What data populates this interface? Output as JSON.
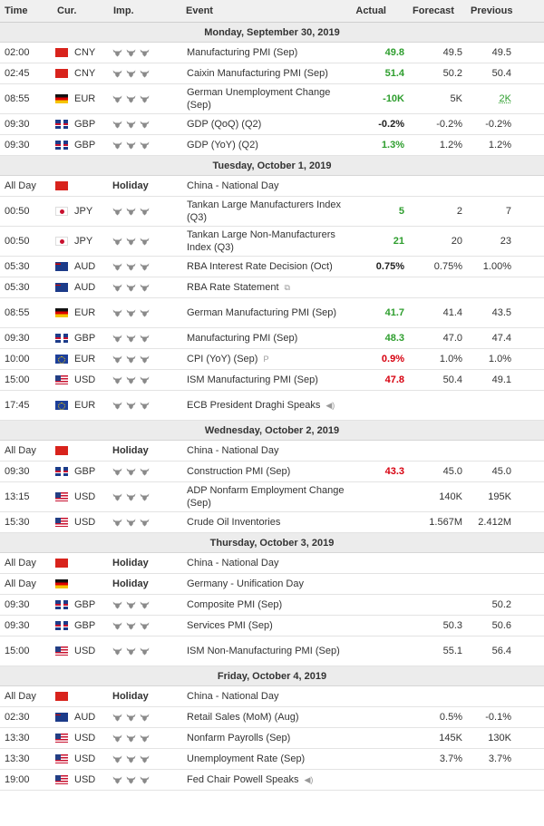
{
  "headers": {
    "time": "Time",
    "currency": "Cur.",
    "importance": "Imp.",
    "event": "Event",
    "actual": "Actual",
    "forecast": "Forecast",
    "previous": "Previous"
  },
  "days": [
    {
      "label": "Monday, September 30, 2019",
      "rows": [
        {
          "time": "02:00",
          "flag": "cn",
          "cur": "CNY",
          "event": "Manufacturing PMI (Sep)",
          "actual": "49.8",
          "actual_color": "green",
          "forecast": "49.5",
          "previous": "49.5",
          "h": 1
        },
        {
          "time": "02:45",
          "flag": "cn",
          "cur": "CNY",
          "event": "Caixin Manufacturing PMI (Sep)",
          "actual": "51.4",
          "actual_color": "green",
          "forecast": "50.2",
          "previous": "50.4",
          "h": 1
        },
        {
          "time": "08:55",
          "flag": "de",
          "cur": "EUR",
          "event": "German Unemployment Change (Sep)",
          "actual": "-10K",
          "actual_color": "green",
          "forecast": "5K",
          "previous": "2K",
          "previous_color": "green",
          "h": 2
        },
        {
          "time": "09:30",
          "flag": "gb",
          "cur": "GBP",
          "event": "GDP (QoQ) (Q2)",
          "actual": "-0.2%",
          "actual_color": "dark",
          "forecast": "-0.2%",
          "previous": "-0.2%",
          "h": 1
        },
        {
          "time": "09:30",
          "flag": "gb",
          "cur": "GBP",
          "event": "GDP (YoY) (Q2)",
          "actual": "1.3%",
          "actual_color": "green",
          "forecast": "1.2%",
          "previous": "1.2%",
          "h": 1
        }
      ]
    },
    {
      "label": "Tuesday, October 1, 2019",
      "rows": [
        {
          "time": "All Day",
          "flag": "cn",
          "cur": "",
          "holiday": "Holiday",
          "event": "China - National Day",
          "actual": "",
          "forecast": "",
          "previous": "",
          "h": 1
        },
        {
          "time": "00:50",
          "flag": "jp",
          "cur": "JPY",
          "event": "Tankan Large Manufacturers Index (Q3)",
          "actual": "5",
          "actual_color": "green",
          "forecast": "2",
          "previous": "7",
          "h": 2
        },
        {
          "time": "00:50",
          "flag": "jp",
          "cur": "JPY",
          "event": "Tankan Large Non-Manufacturers Index (Q3)",
          "actual": "21",
          "actual_color": "green",
          "forecast": "20",
          "previous": "23",
          "h": 2
        },
        {
          "time": "05:30",
          "flag": "au",
          "cur": "AUD",
          "event": "RBA Interest Rate Decision (Oct)",
          "actual": "0.75%",
          "actual_color": "dark",
          "forecast": "0.75%",
          "previous": "1.00%",
          "h": 1
        },
        {
          "time": "05:30",
          "flag": "au",
          "cur": "AUD",
          "event": "RBA Rate Statement",
          "icon": "⧉",
          "actual": "",
          "forecast": "",
          "previous": "",
          "h": 1
        },
        {
          "time": "08:55",
          "flag": "de",
          "cur": "EUR",
          "event": "German Manufacturing PMI (Sep)",
          "actual": "41.7",
          "actual_color": "green",
          "forecast": "41.4",
          "previous": "43.5",
          "h": 2
        },
        {
          "time": "09:30",
          "flag": "gb",
          "cur": "GBP",
          "event": "Manufacturing PMI (Sep)",
          "actual": "48.3",
          "actual_color": "green",
          "forecast": "47.0",
          "previous": "47.4",
          "h": 1
        },
        {
          "time": "10:00",
          "flag": "eu",
          "cur": "EUR",
          "event": "CPI (YoY) (Sep)",
          "icon": "P",
          "actual": "0.9%",
          "actual_color": "red",
          "forecast": "1.0%",
          "previous": "1.0%",
          "h": 1
        },
        {
          "time": "15:00",
          "flag": "us",
          "cur": "USD",
          "event": "ISM Manufacturing PMI (Sep)",
          "actual": "47.8",
          "actual_color": "red",
          "forecast": "50.4",
          "previous": "49.1",
          "h": 1
        },
        {
          "time": "17:45",
          "flag": "eu",
          "cur": "EUR",
          "event": "ECB President Draghi Speaks",
          "icon": "◀)",
          "actual": "",
          "forecast": "",
          "previous": "",
          "h": 2
        }
      ]
    },
    {
      "label": "Wednesday, October 2, 2019",
      "rows": [
        {
          "time": "All Day",
          "flag": "cn",
          "cur": "",
          "holiday": "Holiday",
          "event": "China - National Day",
          "actual": "",
          "forecast": "",
          "previous": "",
          "h": 1
        },
        {
          "time": "09:30",
          "flag": "gb",
          "cur": "GBP",
          "event": "Construction PMI (Sep)",
          "actual": "43.3",
          "actual_color": "red",
          "forecast": "45.0",
          "previous": "45.0",
          "h": 1
        },
        {
          "time": "13:15",
          "flag": "us",
          "cur": "USD",
          "event": "ADP Nonfarm Employment Change (Sep)",
          "actual": "",
          "forecast": "140K",
          "previous": "195K",
          "h": 2
        },
        {
          "time": "15:30",
          "flag": "us",
          "cur": "USD",
          "event": "Crude Oil Inventories",
          "actual": "",
          "forecast": "1.567M",
          "previous": "2.412M",
          "h": 1
        }
      ]
    },
    {
      "label": "Thursday, October 3, 2019",
      "rows": [
        {
          "time": "All Day",
          "flag": "cn",
          "cur": "",
          "holiday": "Holiday",
          "event": "China - National Day",
          "actual": "",
          "forecast": "",
          "previous": "",
          "h": 1
        },
        {
          "time": "All Day",
          "flag": "de",
          "cur": "",
          "holiday": "Holiday",
          "event": "Germany - Unification Day",
          "actual": "",
          "forecast": "",
          "previous": "",
          "h": 1
        },
        {
          "time": "09:30",
          "flag": "gb",
          "cur": "GBP",
          "event": "Composite PMI (Sep)",
          "actual": "",
          "forecast": "",
          "previous": "50.2",
          "h": 1
        },
        {
          "time": "09:30",
          "flag": "gb",
          "cur": "GBP",
          "event": "Services PMI (Sep)",
          "actual": "",
          "forecast": "50.3",
          "previous": "50.6",
          "h": 1
        },
        {
          "time": "15:00",
          "flag": "us",
          "cur": "USD",
          "event": "ISM Non-Manufacturing PMI (Sep)",
          "actual": "",
          "forecast": "55.1",
          "previous": "56.4",
          "h": 2
        }
      ]
    },
    {
      "label": "Friday, October 4, 2019",
      "rows": [
        {
          "time": "All Day",
          "flag": "cn",
          "cur": "",
          "holiday": "Holiday",
          "event": "China - National Day",
          "actual": "",
          "forecast": "",
          "previous": "",
          "h": 1
        },
        {
          "time": "02:30",
          "flag": "au",
          "cur": "AUD",
          "event": "Retail Sales (MoM) (Aug)",
          "actual": "",
          "forecast": "0.5%",
          "previous": "-0.1%",
          "h": 1
        },
        {
          "time": "13:30",
          "flag": "us",
          "cur": "USD",
          "event": "Nonfarm Payrolls (Sep)",
          "actual": "",
          "forecast": "145K",
          "previous": "130K",
          "h": 1
        },
        {
          "time": "13:30",
          "flag": "us",
          "cur": "USD",
          "event": "Unemployment Rate (Sep)",
          "actual": "",
          "forecast": "3.7%",
          "previous": "3.7%",
          "h": 1
        },
        {
          "time": "19:00",
          "flag": "us",
          "cur": "USD",
          "event": "Fed Chair Powell Speaks",
          "icon": "◀)",
          "actual": "",
          "forecast": "",
          "previous": "",
          "h": 1
        }
      ]
    }
  ]
}
